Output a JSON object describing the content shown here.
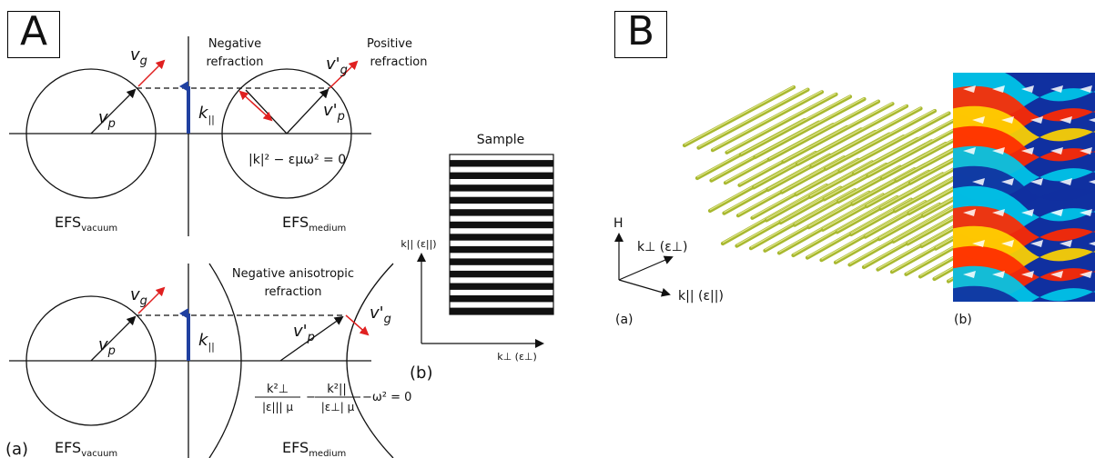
{
  "panel_a": {
    "letter": "A",
    "top": {
      "neg_refraction": [
        "Negative",
        "refraction"
      ],
      "pos_refraction": [
        "Positive",
        "refraction"
      ],
      "vg": "v",
      "vg_sub": "g",
      "vgp": "v'",
      "vgp_sub": "g",
      "vp": "v",
      "vp_sub": "p",
      "vpp": "v'",
      "vpp_sub": "p",
      "kpar": "k",
      "kpar_sub": "||",
      "equation": "|k|² − εμω² = 0",
      "efs_vacuum": "EFS",
      "efs_vacuum_sub": "vacuum",
      "efs_medium": "EFS",
      "efs_medium_sub": "medium"
    },
    "bottom": {
      "title": [
        "Negative anisotropic",
        "refraction"
      ],
      "vg": "v",
      "vg_sub": "g",
      "vgp": "v'",
      "vgp_sub": "g",
      "vp": "v",
      "vp_sub": "p",
      "vpp": "v'",
      "vpp_sub": "p",
      "kpar": "k",
      "kpar_sub": "||",
      "eq_num1": "k²⊥",
      "eq_den1": "|ε||| μ",
      "eq_num2": "k²||",
      "eq_den2": "|ε⊥| μ",
      "eq_tail": "−ω² = 0",
      "efs_vacuum": "EFS",
      "efs_vacuum_sub": "vacuum",
      "efs_medium": "EFS",
      "efs_medium_sub": "medium"
    },
    "label_a": "(a)",
    "label_b": "(b)",
    "sample": {
      "title": "Sample",
      "y_axis": "k|| (ε||)",
      "x_axis": "k⊥ (ε⊥)",
      "stripe_count": 13
    }
  },
  "panel_b": {
    "letter": "B",
    "axis_h": "H",
    "axis_kperp": "k⊥ (ε⊥)",
    "axis_kpar": "k|| (ε||)",
    "label_a": "(a)",
    "label_b": "(b)"
  },
  "colors": {
    "red_arrow": "#e02020",
    "blue_arrow": "#2040a0",
    "rod": "#a8b830"
  }
}
